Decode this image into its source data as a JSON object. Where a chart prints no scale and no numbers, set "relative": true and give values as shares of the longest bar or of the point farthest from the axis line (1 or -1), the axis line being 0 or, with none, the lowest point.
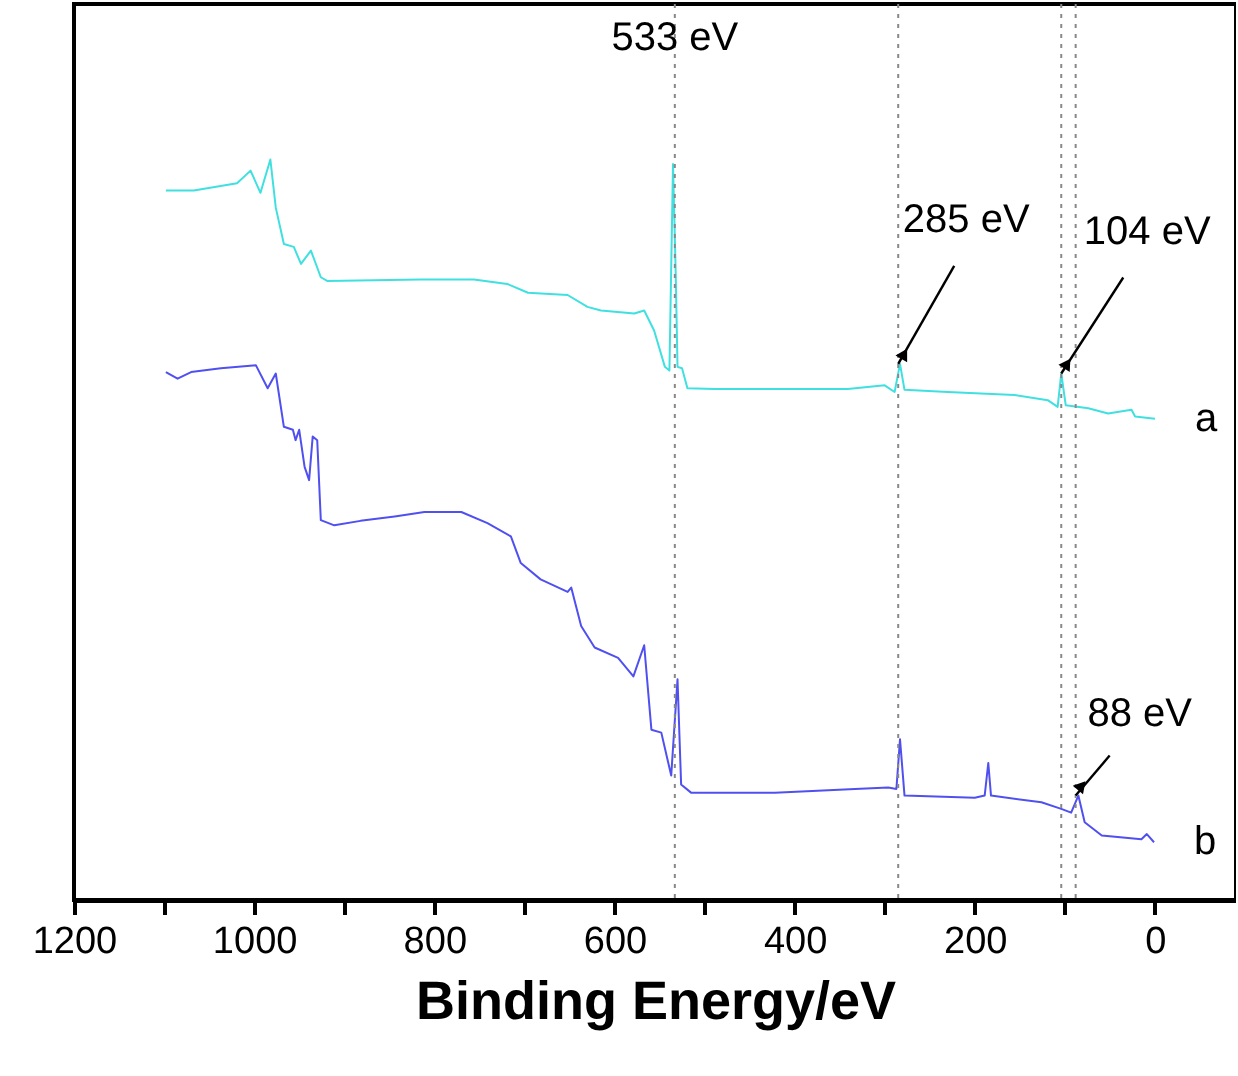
{
  "chart_data": {
    "type": "line",
    "xlabel": "Binding Energy/eV",
    "relative": true,
    "xlim": [
      1200,
      -90
    ],
    "xticks": [
      1200,
      {
        "value": 1100,
        "label": null
      },
      1000,
      {
        "value": 900,
        "label": null
      },
      800,
      {
        "value": 700,
        "label": null
      },
      600,
      {
        "value": 500,
        "label": null
      },
      400,
      {
        "value": 300,
        "label": null
      },
      200,
      {
        "value": 100,
        "label": null
      },
      0
    ],
    "x": [
      1098,
      1067,
      1019,
      1004,
      993,
      982,
      976,
      967,
      956,
      948,
      937,
      926,
      919,
      815,
      756,
      719,
      696,
      652,
      630,
      615,
      578,
      567,
      556,
      544,
      539,
      535,
      532,
      530,
      525,
      519,
      489,
      415,
      341,
      300,
      289,
      283,
      278,
      230,
      156,
      119,
      108,
      104,
      99,
      74,
      52,
      26,
      22,
      0
    ],
    "series": [
      {
        "name": "a",
        "color": "#40e0e0",
        "values": [
          0.958,
          0.958,
          0.968,
          0.985,
          0.955,
          1.0,
          0.935,
          0.886,
          0.882,
          0.859,
          0.877,
          0.841,
          0.836,
          0.838,
          0.838,
          0.832,
          0.82,
          0.817,
          0.801,
          0.796,
          0.792,
          0.796,
          0.769,
          0.72,
          0.715,
          0.994,
          0.846,
          0.72,
          0.718,
          0.691,
          0.69,
          0.69,
          0.69,
          0.695,
          0.686,
          0.724,
          0.689,
          0.686,
          0.682,
          0.675,
          0.666,
          0.711,
          0.668,
          0.664,
          0.657,
          0.662,
          0.653,
          0.65
        ]
      },
      {
        "name": "b",
        "color": "#5050f0",
        "x": [
          1098,
          1085,
          1070,
          1037,
          998,
          985,
          976,
          967,
          957,
          954,
          950,
          944,
          939,
          935,
          930,
          926,
          911,
          882,
          844,
          811,
          770,
          741,
          715,
          704,
          682,
          652,
          648,
          637,
          622,
          596,
          579,
          567,
          559,
          548,
          537,
          530,
          526,
          515,
          422,
          333,
          296,
          287,
          283,
          278,
          200,
          189,
          185,
          182,
          126,
          104,
          93,
          85,
          78,
          59,
          15,
          9,
          1
        ],
        "values": [
          0.713,
          0.704,
          0.713,
          0.718,
          0.722,
          0.691,
          0.711,
          0.639,
          0.635,
          0.621,
          0.635,
          0.585,
          0.567,
          0.626,
          0.621,
          0.513,
          0.506,
          0.512,
          0.518,
          0.524,
          0.524,
          0.509,
          0.491,
          0.455,
          0.433,
          0.416,
          0.422,
          0.37,
          0.341,
          0.327,
          0.302,
          0.344,
          0.23,
          0.226,
          0.168,
          0.298,
          0.156,
          0.145,
          0.145,
          0.15,
          0.152,
          0.15,
          0.217,
          0.141,
          0.138,
          0.141,
          0.185,
          0.141,
          0.132,
          0.123,
          0.118,
          0.141,
          0.105,
          0.087,
          0.082,
          0.089,
          0.078
        ]
      }
    ],
    "ref_lines": [
      {
        "axis": "x",
        "value": 533,
        "label": "533 eV",
        "color": "#888888",
        "line_style": "dotted"
      },
      {
        "axis": "x",
        "value": 285,
        "color": "#888888",
        "line_style": "dotted"
      },
      {
        "axis": "x",
        "value": 104,
        "color": "#888888",
        "line_style": "dotted"
      },
      {
        "axis": "x",
        "value": 88,
        "color": "#888888",
        "line_style": "dotted"
      }
    ],
    "annotations": [
      {
        "text": "285 eV",
        "x": 285,
        "y": 0.724
      },
      {
        "text": "104 eV",
        "x": 104,
        "y": 0.711
      },
      {
        "text": "88 eV",
        "x": 88,
        "y": 0.141
      }
    ],
    "grid": false,
    "legend": false,
    "marker": "none",
    "line_style": "solid"
  }
}
